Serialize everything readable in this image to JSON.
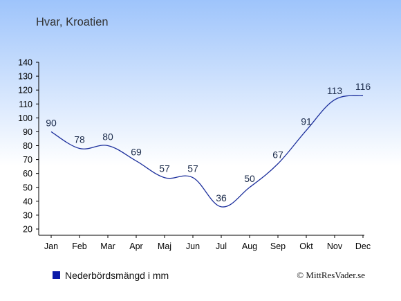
{
  "chart_data": {
    "type": "line",
    "title": "Hvar, Kroatien",
    "categories": [
      "Jan",
      "Feb",
      "Mar",
      "Apr",
      "Maj",
      "Jun",
      "Jul",
      "Aug",
      "Sep",
      "Okt",
      "Nov",
      "Dec"
    ],
    "series": [
      {
        "name": "Nederbördsmängd i mm",
        "values": [
          90,
          78,
          80,
          69,
          57,
          57,
          36,
          50,
          67,
          91,
          113,
          116
        ]
      }
    ],
    "ylim": [
      20,
      140
    ],
    "yticks": [
      20,
      30,
      40,
      50,
      60,
      70,
      80,
      90,
      100,
      110,
      120,
      130,
      140
    ],
    "grid": false,
    "legend_position": "bottom-left",
    "colors": {
      "line": "#1c2f9c",
      "legend_marker": "#0a1aa8",
      "background_top": "#9ec4fb",
      "background_bottom": "#ffffff"
    }
  },
  "footer": {
    "legend_label": "Nederbördsmängd i mm",
    "copyright": "© MittResVader.se"
  }
}
